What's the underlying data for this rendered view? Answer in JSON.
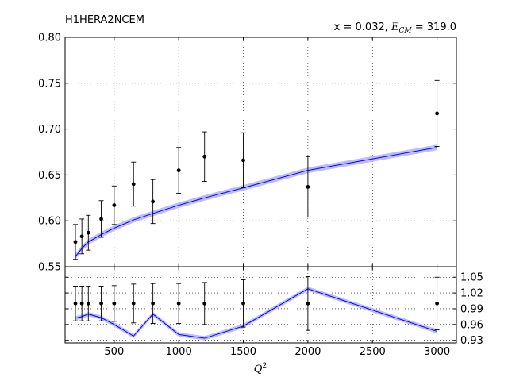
{
  "chart_data": {
    "type": "line",
    "title_left": "H1HERA2NCEM",
    "title_right_prefix": "x = 0.032, ",
    "title_right_symbol": "E",
    "title_right_subscript": "CM",
    "title_right_suffix": " = 319.0",
    "xlabel_symbol": "Q",
    "xlabel_sup": "2",
    "xlim": [
      120,
      3150
    ],
    "x_ticks": [
      500,
      1000,
      1500,
      2000,
      2500,
      3000
    ],
    "grid": true,
    "top_panel": {
      "ylim": [
        0.55,
        0.8
      ],
      "y_ticks": [
        0.55,
        0.6,
        0.65,
        0.7,
        0.75,
        0.8
      ],
      "y_tick_labels": [
        "0.55",
        "0.60",
        "0.65",
        "0.70",
        "0.75",
        "0.80"
      ],
      "data_points": [
        {
          "x": 200,
          "y": 0.577,
          "err": 0.019
        },
        {
          "x": 250,
          "y": 0.583,
          "err": 0.019
        },
        {
          "x": 300,
          "y": 0.587,
          "err": 0.019
        },
        {
          "x": 400,
          "y": 0.602,
          "err": 0.02
        },
        {
          "x": 500,
          "y": 0.617,
          "err": 0.021
        },
        {
          "x": 650,
          "y": 0.64,
          "err": 0.024
        },
        {
          "x": 800,
          "y": 0.621,
          "err": 0.024
        },
        {
          "x": 1000,
          "y": 0.655,
          "err": 0.025
        },
        {
          "x": 1200,
          "y": 0.67,
          "err": 0.027
        },
        {
          "x": 1500,
          "y": 0.666,
          "err": 0.03
        },
        {
          "x": 2000,
          "y": 0.637,
          "err": 0.033
        },
        {
          "x": 3000,
          "y": 0.717,
          "err": 0.036
        }
      ],
      "theory_x": [
        200,
        250,
        300,
        400,
        500,
        650,
        800,
        1000,
        1200,
        1500,
        2000,
        3000
      ],
      "theory_y": [
        0.561,
        0.57,
        0.577,
        0.585,
        0.592,
        0.601,
        0.608,
        0.617,
        0.625,
        0.636,
        0.655,
        0.68
      ],
      "theory_band": 0.003
    },
    "ratio_panel": {
      "ylim": [
        0.925,
        1.07
      ],
      "y_ticks": [
        0.93,
        0.96,
        0.99,
        1.02,
        1.05
      ],
      "y_tick_labels": [
        "0.93",
        "0.96",
        "0.99",
        "1.02",
        "1.05"
      ],
      "data_points": [
        {
          "x": 200,
          "y": 1.0,
          "err": 0.033
        },
        {
          "x": 250,
          "y": 1.0,
          "err": 0.033
        },
        {
          "x": 300,
          "y": 1.0,
          "err": 0.033
        },
        {
          "x": 400,
          "y": 1.0,
          "err": 0.033
        },
        {
          "x": 500,
          "y": 1.0,
          "err": 0.034
        },
        {
          "x": 650,
          "y": 1.0,
          "err": 0.037
        },
        {
          "x": 800,
          "y": 1.0,
          "err": 0.038
        },
        {
          "x": 1000,
          "y": 1.0,
          "err": 0.038
        },
        {
          "x": 1200,
          "y": 1.0,
          "err": 0.04
        },
        {
          "x": 1500,
          "y": 1.0,
          "err": 0.045
        },
        {
          "x": 2000,
          "y": 1.0,
          "err": 0.051
        },
        {
          "x": 3000,
          "y": 1.0,
          "err": 0.05
        }
      ],
      "theory_x": [
        200,
        250,
        300,
        400,
        500,
        650,
        800,
        1000,
        1200,
        1500,
        2000,
        3000
      ],
      "theory_y": [
        0.972,
        0.975,
        0.98,
        0.973,
        0.96,
        0.938,
        0.98,
        0.941,
        0.934,
        0.957,
        1.028,
        0.947
      ],
      "theory_band": 0.004
    },
    "colors": {
      "theory_line": "#0000ff",
      "theory_band": "#b0b0ff",
      "data": "#000000",
      "grid": "#000000"
    }
  }
}
